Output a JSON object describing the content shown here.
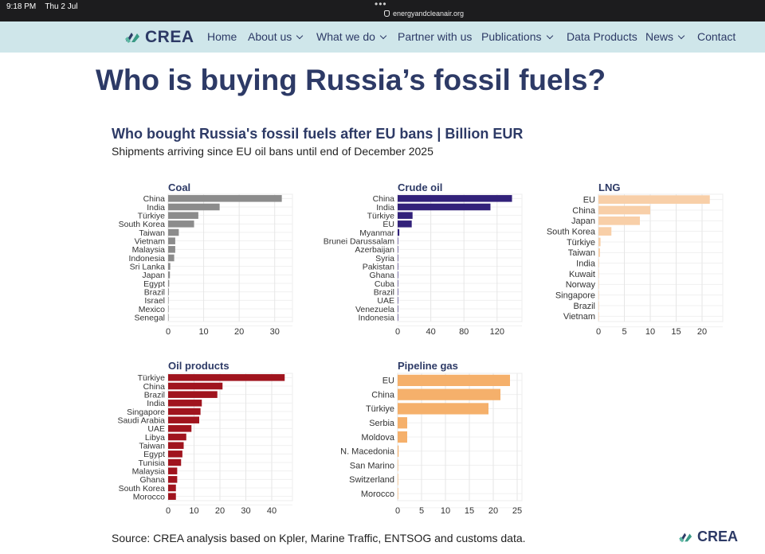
{
  "status_bar": {
    "time": "9:18 PM",
    "date": "Thu 2 Jul",
    "url": "energyandcleanair.org",
    "tabs_icon": "more-dots-icon",
    "lock_icon": "shield-icon"
  },
  "nav": {
    "logo": "CREA",
    "items": [
      {
        "label": "Home",
        "dropdown": false
      },
      {
        "label": "About us",
        "dropdown": true
      },
      {
        "label": "What we do",
        "dropdown": true
      },
      {
        "label": "Partner with us",
        "dropdown": false
      },
      {
        "label": "Publications",
        "dropdown": true
      },
      {
        "label": "Data Products",
        "dropdown": false
      },
      {
        "label": "News",
        "dropdown": true
      },
      {
        "label": "Contact",
        "dropdown": false
      }
    ],
    "background": "#cfe6ea",
    "text_color": "#2d3a66"
  },
  "page_title": "Who is buying Russia’s fossil fuels?",
  "figure": {
    "title": "Who bought Russia's fossil fuels after EU bans | Billion EUR",
    "subtitle": "Shipments arriving since EU oil bans until end of December 2025",
    "source": "Source: CREA analysis based on Kpler, Marine Traffic, ENTSOG and customs data.",
    "logo": "CREA"
  },
  "chart_data": [
    {
      "type": "bar",
      "orientation": "horizontal",
      "title": "Coal",
      "color": "#8c8c8c",
      "categories": [
        "China",
        "India",
        "Türkiye",
        "South Korea",
        "Taiwan",
        "Vietnam",
        "Malaysia",
        "Indonesia",
        "Sri Lanka",
        "Japan",
        "Egypt",
        "Brazil",
        "Israel",
        "Mexico",
        "Senegal"
      ],
      "values": [
        32,
        14.5,
        8.5,
        7.3,
        3,
        2,
        2,
        1.7,
        0.6,
        0.5,
        0.3,
        0.2,
        0.1,
        0.1,
        0.05
      ],
      "xlim": [
        0,
        35
      ],
      "xticks": [
        0,
        10,
        20,
        30
      ],
      "grid": true
    },
    {
      "type": "bar",
      "orientation": "horizontal",
      "title": "Crude oil",
      "color": "#32217a",
      "categories": [
        "China",
        "India",
        "Türkiye",
        "EU",
        "Myanmar",
        "Brunei Darussalam",
        "Azerbaijan",
        "Syria",
        "Pakistan",
        "Ghana",
        "Cuba",
        "Brazil",
        "UAE",
        "Venezuela",
        "Indonesia"
      ],
      "values": [
        138,
        112,
        18,
        17,
        2,
        0.5,
        0.4,
        0.3,
        0.3,
        0.2,
        0.2,
        0.1,
        0.1,
        0.1,
        0.1
      ],
      "xlim": [
        0,
        150
      ],
      "xticks": [
        0,
        40,
        80,
        120
      ],
      "grid": true
    },
    {
      "type": "bar",
      "orientation": "horizontal",
      "title": "LNG",
      "color": "#f8cfa8",
      "categories": [
        "EU",
        "China",
        "Japan",
        "South Korea",
        "Türkiye",
        "Taiwan",
        "India",
        "Kuwait",
        "Norway",
        "Singapore",
        "Brazil",
        "Vietnam"
      ],
      "values": [
        21.5,
        10,
        8,
        2.5,
        0.4,
        0.3,
        0.1,
        0.05,
        0.05,
        0.05,
        0.05,
        0.05
      ],
      "xlim": [
        0,
        24
      ],
      "xticks": [
        0,
        5,
        10,
        15,
        20
      ],
      "grid": true
    },
    {
      "type": "bar",
      "orientation": "horizontal",
      "title": "Oil products",
      "color": "#a0141e",
      "categories": [
        "Türkiye",
        "China",
        "Brazil",
        "India",
        "Singapore",
        "Saudi Arabia",
        "UAE",
        "Libya",
        "Taiwan",
        "Egypt",
        "Tunisia",
        "Malaysia",
        "Ghana",
        "South Korea",
        "Morocco"
      ],
      "values": [
        45,
        21,
        19,
        13,
        12.5,
        12,
        9,
        7,
        6,
        5.5,
        5,
        3.5,
        3.5,
        3,
        3
      ],
      "xlim": [
        0,
        48
      ],
      "xticks": [
        0,
        10,
        20,
        30,
        40
      ],
      "grid": true
    },
    {
      "type": "bar",
      "orientation": "horizontal",
      "title": "Pipeline gas",
      "color": "#f5b06b",
      "categories": [
        "EU",
        "China",
        "Türkiye",
        "Serbia",
        "Moldova",
        "N. Macedonia",
        "San Marino",
        "Switzerland",
        "Morocco"
      ],
      "values": [
        23.5,
        21.5,
        19,
        2,
        2,
        0.2,
        0.05,
        0.05,
        0.05
      ],
      "xlim": [
        0,
        26
      ],
      "xticks": [
        0,
        5,
        10,
        15,
        20,
        25
      ],
      "grid": true
    }
  ]
}
